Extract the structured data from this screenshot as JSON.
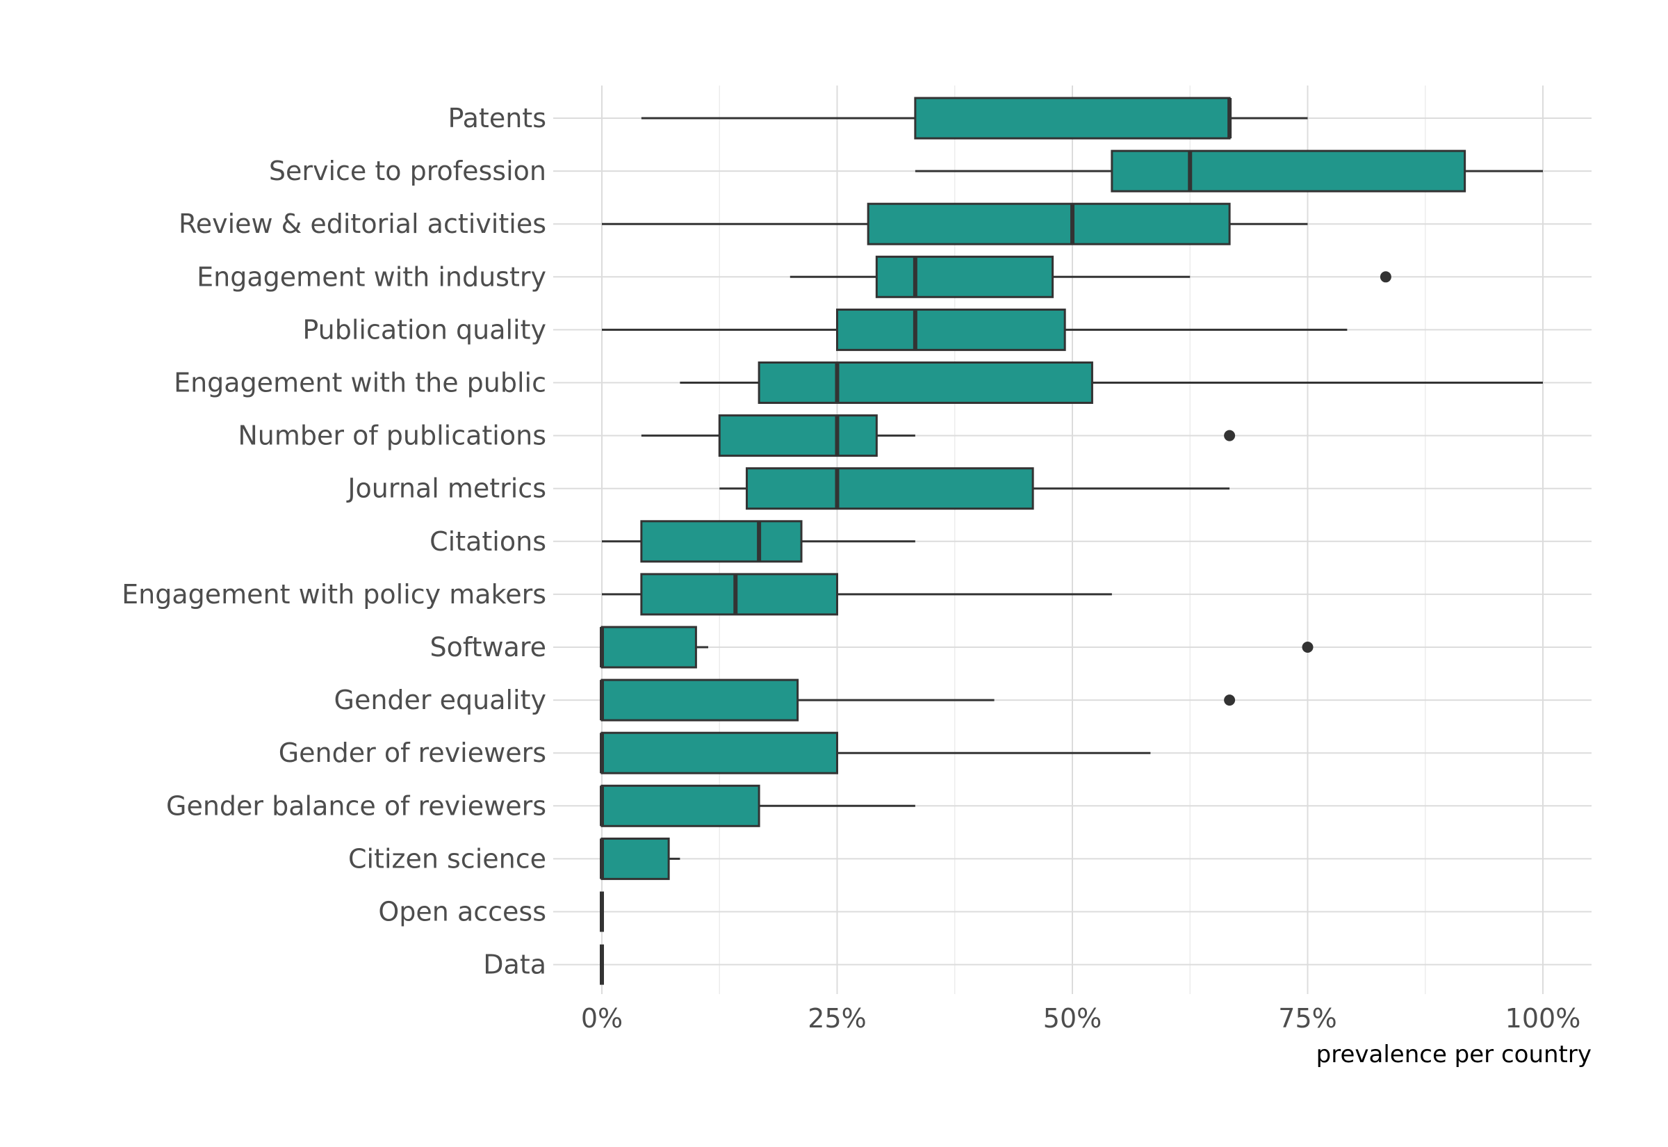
{
  "chart_data": {
    "type": "boxplot",
    "orientation": "horizontal",
    "title": "",
    "xlabel": "prevalence per country",
    "ylabel": "",
    "xlim": [
      -5,
      105
    ],
    "x_ticks": [
      0,
      25,
      50,
      75,
      100
    ],
    "x_tick_labels": [
      "0%",
      "25%",
      "50%",
      "75%",
      "100%"
    ],
    "grid": true,
    "legend": "none",
    "fill_color": "#21968B",
    "line_color": "#333333",
    "categories": [
      "Patents",
      "Service to profession",
      "Review & editorial activities",
      "Engagement with industry",
      "Publication quality",
      "Engagement with the public",
      "Number of publications",
      "Journal metrics",
      "Citations",
      "Engagement with policy makers",
      "Software",
      "Gender equality",
      "Gender of reviewers",
      "Gender balance of reviewers",
      "Citizen science",
      "Open access",
      "Data"
    ],
    "boxes": [
      {
        "min": 4.2,
        "q1": 33.3,
        "median": 66.7,
        "q3": 66.7,
        "max": 75.0,
        "outliers": []
      },
      {
        "min": 33.3,
        "q1": 54.2,
        "median": 62.5,
        "q3": 91.7,
        "max": 100.0,
        "outliers": []
      },
      {
        "min": 0.0,
        "q1": 28.3,
        "median": 50.0,
        "q3": 66.7,
        "max": 75.0,
        "outliers": []
      },
      {
        "min": 20.0,
        "q1": 29.2,
        "median": 33.3,
        "q3": 47.9,
        "max": 62.5,
        "outliers": [
          83.3
        ]
      },
      {
        "min": 0.0,
        "q1": 25.0,
        "median": 33.3,
        "q3": 49.2,
        "max": 79.2,
        "outliers": []
      },
      {
        "min": 8.3,
        "q1": 16.7,
        "median": 25.0,
        "q3": 52.1,
        "max": 100.0,
        "outliers": []
      },
      {
        "min": 4.2,
        "q1": 12.5,
        "median": 25.0,
        "q3": 29.2,
        "max": 33.3,
        "outliers": [
          66.7
        ]
      },
      {
        "min": 12.5,
        "q1": 15.4,
        "median": 25.0,
        "q3": 45.8,
        "max": 66.7,
        "outliers": []
      },
      {
        "min": 0.0,
        "q1": 4.2,
        "median": 16.7,
        "q3": 21.2,
        "max": 33.3,
        "outliers": []
      },
      {
        "min": 0.0,
        "q1": 4.2,
        "median": 14.2,
        "q3": 25.0,
        "max": 54.2,
        "outliers": []
      },
      {
        "min": 0.0,
        "q1": 0.0,
        "median": 0.0,
        "q3": 10.0,
        "max": 11.3,
        "outliers": [
          75.0
        ]
      },
      {
        "min": 0.0,
        "q1": 0.0,
        "median": 0.0,
        "q3": 20.8,
        "max": 41.7,
        "outliers": [
          66.7
        ]
      },
      {
        "min": 0.0,
        "q1": 0.0,
        "median": 0.0,
        "q3": 25.0,
        "max": 58.3,
        "outliers": []
      },
      {
        "min": 0.0,
        "q1": 0.0,
        "median": 0.0,
        "q3": 16.7,
        "max": 33.3,
        "outliers": []
      },
      {
        "min": 0.0,
        "q1": 0.0,
        "median": 0.0,
        "q3": 7.1,
        "max": 8.3,
        "outliers": []
      },
      {
        "min": 0.0,
        "q1": 0.0,
        "median": 0.0,
        "q3": 0.0,
        "max": 0.0,
        "outliers": []
      },
      {
        "min": 0.0,
        "q1": 0.0,
        "median": 0.0,
        "q3": 0.0,
        "max": 0.0,
        "outliers": []
      }
    ]
  }
}
